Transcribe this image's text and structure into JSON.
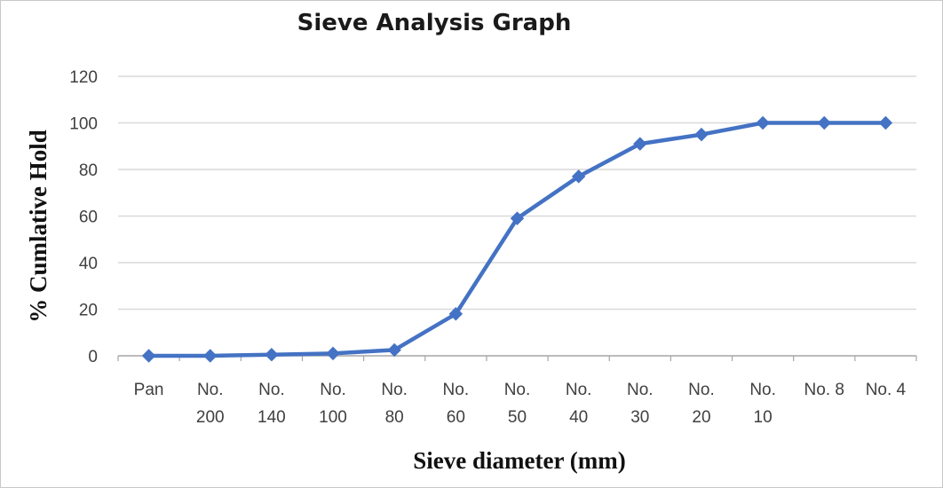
{
  "chart_data": {
    "type": "line",
    "title": "Sieve Analysis Graph",
    "xlabel": "Sieve diameter (mm)",
    "ylabel": "% Cumlative Hold",
    "categories": [
      [
        "Pan"
      ],
      [
        "No.",
        "200"
      ],
      [
        "No.",
        "140"
      ],
      [
        "No.",
        "100"
      ],
      [
        "No.",
        "80"
      ],
      [
        "No.",
        "60"
      ],
      [
        "No.",
        "50"
      ],
      [
        "No.",
        "40"
      ],
      [
        "No.",
        "30"
      ],
      [
        "No.",
        "20"
      ],
      [
        "No.",
        "10"
      ],
      [
        "No. 8"
      ],
      [
        "No. 4"
      ]
    ],
    "series": [
      {
        "values": [
          0,
          0,
          0.5,
          1,
          2.5,
          18,
          59,
          77,
          91,
          95,
          100,
          100,
          100
        ]
      }
    ],
    "ylim": [
      0,
      120
    ],
    "yticks": [
      0,
      20,
      40,
      60,
      80,
      100,
      120
    ],
    "grid": true,
    "legend": "none",
    "colors": {
      "line": "#4472c4",
      "grid": "#d9d9d9",
      "axis": "#a6a6a6"
    }
  }
}
